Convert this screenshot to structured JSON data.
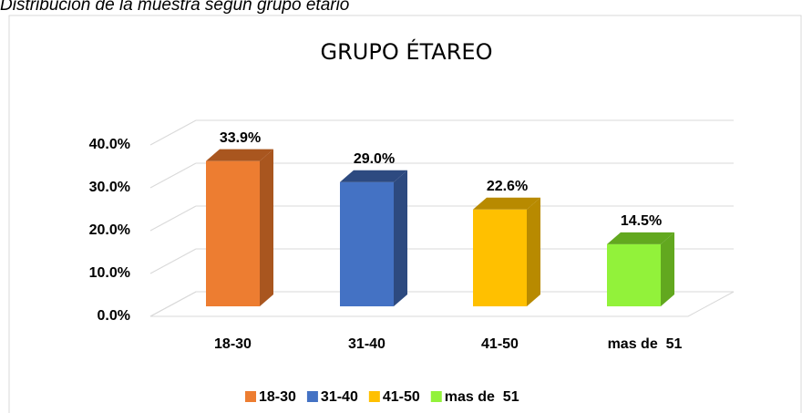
{
  "caption": "Distribución de la muestra según grupo etario",
  "chart_data": {
    "type": "bar3d",
    "title": "GRUPO ÉTAREO",
    "categories": [
      "18-30",
      "31-40",
      "41-50",
      "mas de  51"
    ],
    "values": [
      33.9,
      29.0,
      22.6,
      14.5
    ],
    "value_labels": [
      "33.9%",
      "29.0%",
      "22.6%",
      "14.5%"
    ],
    "colors": [
      "#ED7D31",
      "#4472C4",
      "#FFC000",
      "#92F23A"
    ],
    "side_colors": [
      "#A9561F",
      "#2D4A80",
      "#B88A00",
      "#62A81F"
    ],
    "ylim": [
      0,
      40
    ],
    "yticks": [
      {
        "value": 0,
        "label": "0.0%"
      },
      {
        "value": 10,
        "label": "10.0%"
      },
      {
        "value": 20,
        "label": "20.0%"
      },
      {
        "value": 30,
        "label": "30.0%"
      },
      {
        "value": 40,
        "label": "40.0%"
      }
    ],
    "grid": true,
    "legend": "bottom"
  }
}
